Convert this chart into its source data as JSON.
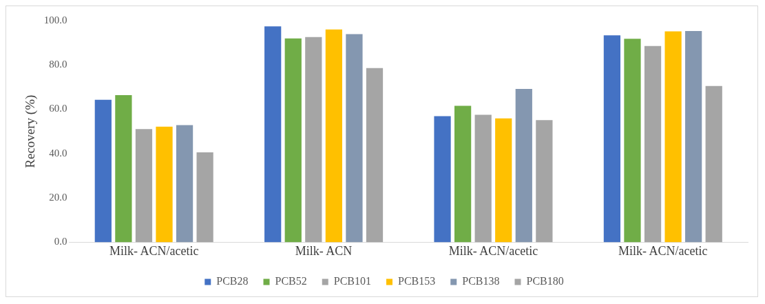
{
  "chart_data": {
    "type": "bar",
    "ylabel": "Recovery (%)",
    "categories": [
      "Milk- ACN/acetic",
      "Milk- ACN",
      "Milk- ACN/acetic",
      "Milk- ACN/acetic"
    ],
    "series": [
      {
        "name": "PCB28",
        "color": "#4472c4",
        "values": [
          64.3,
          97.4,
          56.9,
          93.4
        ]
      },
      {
        "name": "PCB52",
        "color": "#70ad47",
        "values": [
          66.4,
          92.0,
          61.6,
          91.8
        ]
      },
      {
        "name": "PCB101",
        "color": "#a5a5a5",
        "values": [
          51.1,
          92.6,
          57.5,
          88.6
        ]
      },
      {
        "name": "PCB153",
        "color": "#ffc000",
        "values": [
          52.2,
          96.0,
          55.9,
          95.2
        ]
      },
      {
        "name": "PCB138",
        "color": "#8497b0",
        "values": [
          52.9,
          93.9,
          69.2,
          95.3
        ]
      },
      {
        "name": "PCB180",
        "color": "#a5a5a5",
        "values": [
          40.6,
          78.6,
          55.1,
          70.5
        ]
      }
    ],
    "ylim": [
      0,
      100
    ],
    "yticks": [
      {
        "value": 0,
        "label": "0.0"
      },
      {
        "value": 20,
        "label": "20.0"
      },
      {
        "value": 40,
        "label": "40.0"
      },
      {
        "value": 60,
        "label": "60.0"
      },
      {
        "value": 80,
        "label": "80.0"
      },
      {
        "value": 100,
        "label": "100.0"
      }
    ],
    "grid": false,
    "legend": "bottom"
  }
}
